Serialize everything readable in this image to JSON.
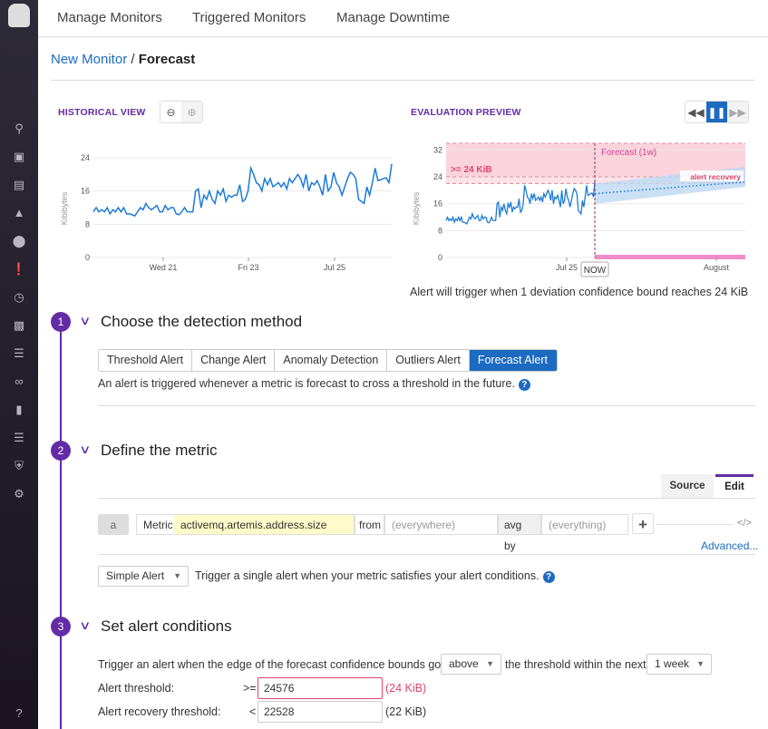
{
  "nav": {
    "tabs": [
      "Manage Monitors",
      "Triggered Monitors",
      "Manage Downtime"
    ]
  },
  "sidebar": {
    "icons": [
      "search-icon",
      "binoculars-icon",
      "list-icon",
      "dashboard-chart-icon",
      "infrastructure-icon",
      "monitors-alert-icon",
      "apm-gauge-icon",
      "integrations-puzzle-icon",
      "logs-filter-icon",
      "synthetics-link-icon",
      "notebook-icon",
      "security-search-icon",
      "shield-icon",
      "settings-gear-icon",
      "help-icon"
    ]
  },
  "breadcrumb": {
    "parent": "New Monitor",
    "separator": "/",
    "current": "Forecast"
  },
  "historical": {
    "title": "HISTORICAL VIEW"
  },
  "evaluation": {
    "title": "EVALUATION PREVIEW",
    "caption": "Alert will trigger when 1 deviation confidence bound reaches 24 KiB",
    "now_label": "NOW",
    "threshold_label": ">= 24 KiB",
    "forecast_label": "Forecast (1w)",
    "recovery_label": "alert recovery"
  },
  "chart_data": [
    {
      "type": "line",
      "title": "",
      "ylabel": "Kibibytes",
      "ylim": [
        0,
        24
      ],
      "yticks": [
        "0",
        "8",
        "16",
        "24"
      ],
      "xticks": [
        "Wed 21",
        "Fri 23",
        "Jul 25"
      ],
      "grid": true,
      "series": [
        {
          "values": [
            11,
            12,
            11,
            11.5,
            11,
            12,
            10.5,
            11.5,
            11,
            12,
            11,
            12,
            10.5,
            10.5,
            10.3,
            10,
            11,
            12,
            11.5,
            13,
            12,
            11.5,
            12,
            12.5,
            11,
            11,
            12.5,
            11.5,
            12,
            12,
            10.5,
            10.3,
            11,
            12,
            11,
            11,
            11,
            16,
            16.5,
            12,
            15,
            14,
            16,
            14,
            13,
            16,
            15,
            16.5,
            13.5,
            15,
            14.5,
            15,
            15,
            17.5,
            13.5,
            14,
            16,
            21.5,
            20,
            18,
            17.5,
            16,
            19,
            17.5,
            19,
            17,
            17.5,
            18,
            17,
            18,
            16.5,
            19,
            18,
            19,
            20,
            19,
            17,
            20,
            16,
            18,
            17.5,
            18.5,
            17,
            15,
            20,
            16,
            17,
            20.5,
            18,
            17,
            15,
            17,
            19,
            20.5,
            20,
            19,
            14,
            13.5,
            13,
            17,
            15,
            18,
            21.5,
            18.5,
            18.7,
            19,
            19.2,
            18,
            22.5
          ]
        }
      ]
    },
    {
      "type": "line",
      "title": "",
      "ylabel": "Kibibytes",
      "ylim": [
        0,
        34
      ],
      "yticks": [
        "0",
        "8",
        "16",
        "24",
        "32"
      ],
      "xticks": [
        "Jul 25",
        "August"
      ],
      "grid": true,
      "alert_threshold": 24,
      "recovery_threshold": 22,
      "forecast": {
        "start": 19,
        "end": 22.5,
        "lower_start": 16,
        "lower_end": 21,
        "upper_start": 22,
        "upper_end": 27
      }
    }
  ],
  "steps": [
    {
      "num": "1",
      "title": "Choose the detection method"
    },
    {
      "num": "2",
      "title": "Define the metric"
    },
    {
      "num": "3",
      "title": "Set alert conditions"
    }
  ],
  "detection": {
    "tabs": [
      "Threshold Alert",
      "Change Alert",
      "Anomaly Detection",
      "Outliers Alert",
      "Forecast Alert"
    ],
    "selected": "Forecast Alert",
    "description": "An alert is triggered whenever a metric is forecast to cross a threshold in the future."
  },
  "metric": {
    "source_tab": "Source",
    "edit_tab": "Edit",
    "query_letter": "a",
    "metric_label": "Metric",
    "metric_value": "activemq.artemis.address.size",
    "from_label": "from",
    "from_placeholder": "(everywhere)",
    "avg_label": "avg by",
    "avg_placeholder": "(everything)",
    "add": "+",
    "code": "</>",
    "advanced": "Advanced...",
    "alert_type": "Simple Alert",
    "alert_type_desc": "Trigger a single alert when your metric satisfies your alert conditions."
  },
  "conditions": {
    "text1": "Trigger an alert when the edge of the forecast confidence bounds goes",
    "direction": "above",
    "text2": "the threshold within the next",
    "window": "1 week",
    "alert_label": "Alert threshold:",
    "alert_op": ">=",
    "alert_value": "24576",
    "alert_hint": "(24 KiB)",
    "recovery_label": "Alert recovery threshold:",
    "recovery_op": "<",
    "recovery_value": "22528",
    "recovery_hint": "(22 KiB)"
  },
  "colors": {
    "accent": "#632ca6",
    "link": "#1d6ac1",
    "series": "#1c7bd8",
    "alert": "#e0446a",
    "forecast": "#d6418f"
  }
}
